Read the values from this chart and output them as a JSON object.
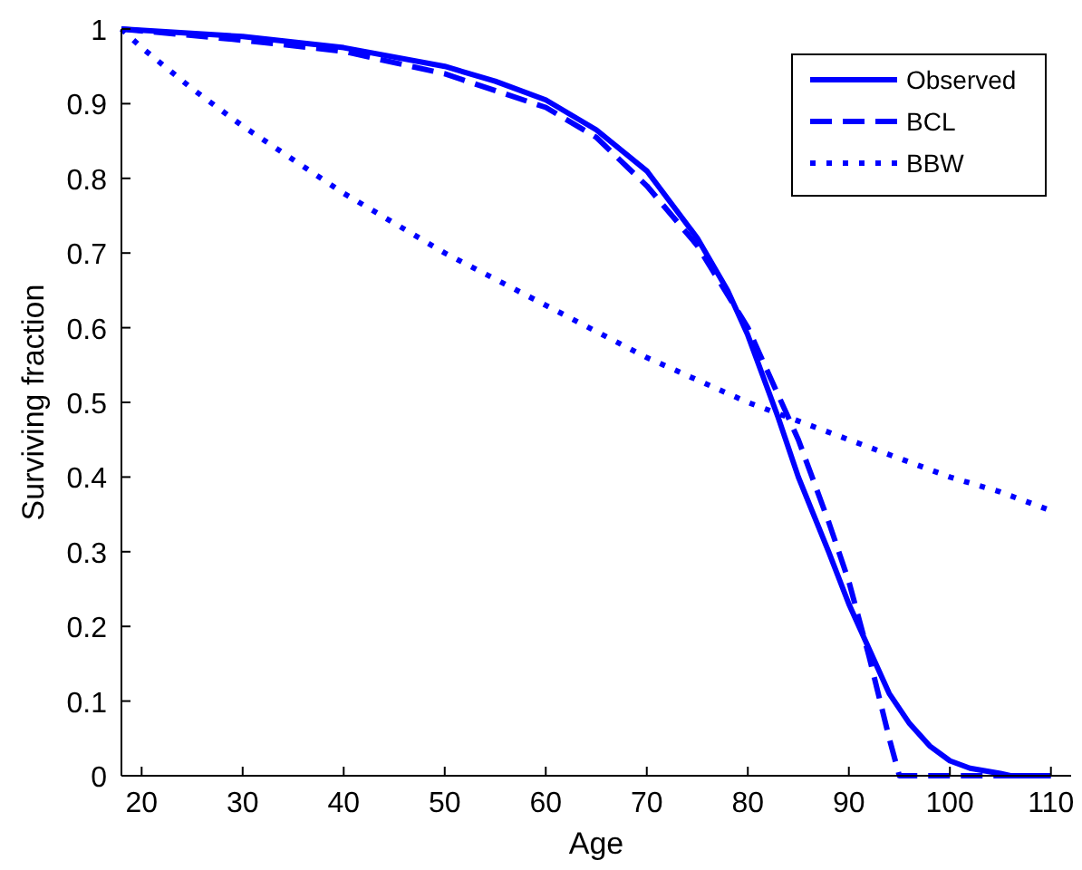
{
  "chart_data": {
    "type": "line",
    "xlabel": "Age",
    "ylabel": "Surviving fraction",
    "xlim": [
      18,
      112
    ],
    "ylim": [
      0,
      1
    ],
    "xticks": [
      20,
      30,
      40,
      50,
      60,
      70,
      80,
      90,
      100,
      110
    ],
    "yticks": [
      0,
      0.1,
      0.2,
      0.3,
      0.4,
      0.5,
      0.6,
      0.7,
      0.8,
      0.9,
      1
    ],
    "grid": false,
    "legend": "top right",
    "series": [
      {
        "name": "Observed",
        "color": "#0000ff",
        "line_style": "solid",
        "x": [
          18,
          30,
          40,
          50,
          55,
          60,
          65,
          70,
          75,
          78,
          80,
          83,
          85,
          88,
          90,
          92,
          94,
          96,
          98,
          100,
          102,
          105,
          106,
          110
        ],
        "values": [
          1,
          0.99,
          0.975,
          0.95,
          0.93,
          0.905,
          0.865,
          0.81,
          0.72,
          0.65,
          0.59,
          0.48,
          0.4,
          0.3,
          0.23,
          0.17,
          0.11,
          0.07,
          0.04,
          0.02,
          0.01,
          0.003,
          0,
          0
        ]
      },
      {
        "name": "BCL",
        "color": "#0000ff",
        "line_style": "dashed",
        "x": [
          18,
          30,
          40,
          50,
          60,
          65,
          70,
          75,
          80,
          83,
          85,
          88,
          90,
          92,
          94,
          95,
          110
        ],
        "values": [
          1,
          0.985,
          0.97,
          0.94,
          0.895,
          0.855,
          0.79,
          0.71,
          0.6,
          0.51,
          0.45,
          0.34,
          0.26,
          0.16,
          0.05,
          0,
          0
        ]
      },
      {
        "name": "BBW",
        "color": "#0000ff",
        "line_style": "dotted",
        "x": [
          18,
          20,
          25,
          30,
          35,
          40,
          45,
          50,
          55,
          60,
          65,
          70,
          75,
          80,
          85,
          90,
          95,
          100,
          105,
          110
        ],
        "values": [
          1,
          0.975,
          0.92,
          0.87,
          0.825,
          0.78,
          0.74,
          0.7,
          0.665,
          0.63,
          0.595,
          0.56,
          0.53,
          0.5,
          0.475,
          0.45,
          0.425,
          0.4,
          0.38,
          0.355
        ]
      }
    ]
  }
}
